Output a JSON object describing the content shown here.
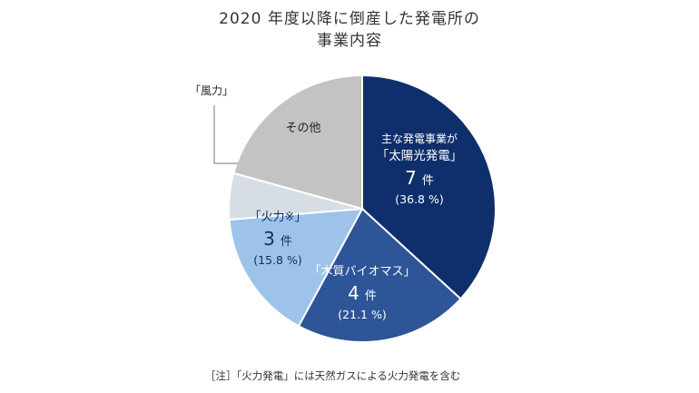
{
  "chart_data": {
    "type": "pie",
    "title_line1": "2020 年度以降に倒産した発電所の",
    "title_line2": "事業内容",
    "start_angle_deg": 0,
    "direction": "clockwise",
    "slices": [
      {
        "key": "solar",
        "lines": [
          "主な発電事業が",
          "「太陽光発電」"
        ],
        "count_num": "7",
        "count_unit": "件",
        "pct_label": "(36.8 %)",
        "value": 36.8,
        "color": "#0e2f6b"
      },
      {
        "key": "biomass",
        "lines": [
          "「木質バイオマス」"
        ],
        "count_num": "4",
        "count_unit": "件",
        "pct_label": "(21.1 %)",
        "value": 21.1,
        "color": "#2e5597"
      },
      {
        "key": "thermal",
        "lines": [
          "「火力※」"
        ],
        "count_num": "3",
        "count_unit": "件",
        "pct_label": "(15.8 %)",
        "value": 15.8,
        "color": "#9dc3ea"
      },
      {
        "key": "wind",
        "lines": [],
        "count_num": "",
        "count_unit": "",
        "pct_label": "",
        "value": 5.6,
        "color": "#d6dde4",
        "callout": "「風力」"
      },
      {
        "key": "other",
        "lines": [
          "その他"
        ],
        "count_num": "",
        "count_unit": "",
        "pct_label": "",
        "value": 20.7,
        "color": "#c3c3c3"
      }
    ]
  },
  "note": "［注］「火力発電」には天然ガスによる火力発電を含む"
}
